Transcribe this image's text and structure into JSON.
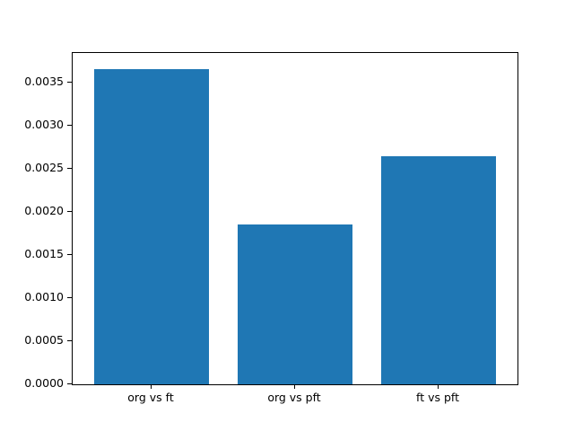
{
  "chart_data": {
    "type": "bar",
    "categories": [
      "org vs ft",
      "org vs pft",
      "ft vs pft"
    ],
    "values": [
      0.00366,
      0.00185,
      0.00265
    ],
    "title": "",
    "xlabel": "",
    "ylabel": "",
    "ylim": [
      0,
      0.003843
    ],
    "yticks": [
      0.0,
      0.0005,
      0.001,
      0.0015,
      0.002,
      0.0025,
      0.003,
      0.0035
    ],
    "ytick_labels": [
      "0.0000",
      "0.0005",
      "0.0010",
      "0.0015",
      "0.0020",
      "0.0025",
      "0.0030",
      "0.0035"
    ],
    "bar_color": "#1f77b4",
    "grid": false,
    "legend_position": "none",
    "bar_width_fraction": 0.8
  }
}
